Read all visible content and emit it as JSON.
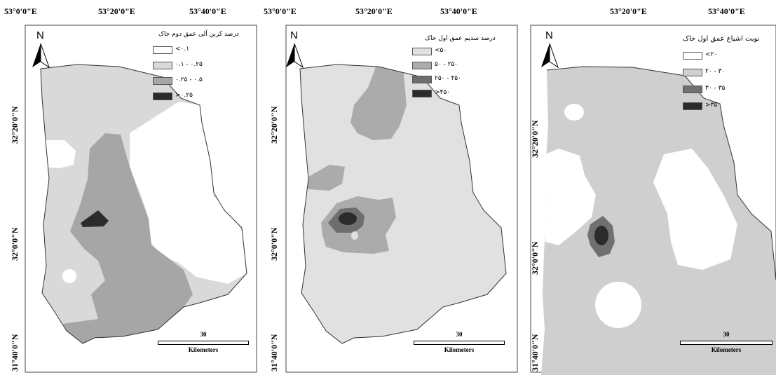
{
  "panels": [
    {
      "lon_labels": [
        "53°0'0\"E",
        "53°20'0\"E",
        "53°40'0\"E"
      ],
      "lat_labels": [
        "32°20'0\"N",
        "32°0'0\"N",
        "31°40'0\"N"
      ],
      "north": "N",
      "legend": {
        "title": "درصد کربن آلی عمق دوم خاک",
        "items": [
          {
            "label": "<۰.۱",
            "color": "#ffffff"
          },
          {
            "label": "۰.۱ - ۰.۲۵",
            "color": "#d9d9d9"
          },
          {
            "label": "۰.۲۵ - ۰.۵",
            "color": "#a6a6a6"
          },
          {
            "label": ">۰.۲۵",
            "color": "#2b2b2b"
          }
        ]
      },
      "scale": {
        "distance": "30",
        "unit": "Kilometers"
      }
    },
    {
      "lon_labels": [
        "53°0'0\"E",
        "53°20'0\"E",
        "53°40'0\"E"
      ],
      "lat_labels": [
        "32°20'0\"N",
        "32°0'0\"N",
        "31°40'0\"N"
      ],
      "north": "N",
      "legend": {
        "title": "درصد سدیم عمق اول خاک",
        "items": [
          {
            "label": "<۵۰",
            "color": "#e1e1e1"
          },
          {
            "label": "۵۰ - ۲۵۰",
            "color": "#ababab"
          },
          {
            "label": "۲۵۰ - ۴۵۰",
            "color": "#6e6e6e"
          },
          {
            "label": ">۴۵۰",
            "color": "#2b2b2b"
          }
        ]
      },
      "scale": {
        "distance": "30",
        "unit": "Kilometers"
      }
    },
    {
      "lon_labels": [
        "53°20'0\"E",
        "53°40'0\"E"
      ],
      "lat_labels": [
        "32°20'0\"N",
        "32°0'0\"N",
        "31°40'0\"N"
      ],
      "north": "N",
      "legend": {
        "title": "نوبت اشباع عمق اول خاک",
        "items": [
          {
            "label": "<۲۰",
            "color": "#ffffff"
          },
          {
            "label": "۲۰ - ۳۰",
            "color": "#cfcfcf"
          },
          {
            "label": "۳۰ - ۳۵",
            "color": "#707070"
          },
          {
            "label": ">۳۵",
            "color": "#2b2b2b"
          }
        ]
      },
      "scale": {
        "distance": "30",
        "unit": "Kilometers"
      }
    }
  ]
}
